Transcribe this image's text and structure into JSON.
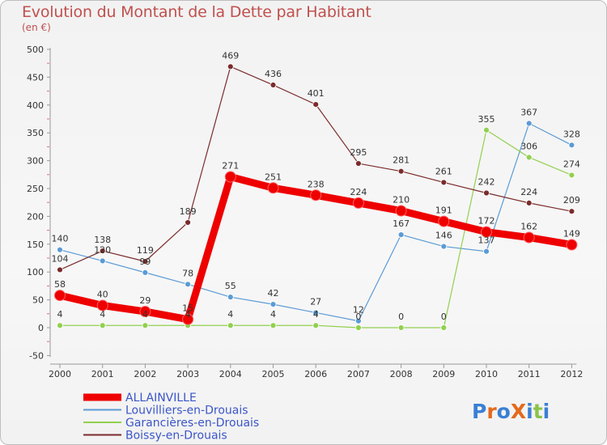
{
  "chart_data": {
    "type": "line",
    "title": "Evolution du Montant de la Dette par Habitant",
    "subtitle": "(en €)",
    "xlabel": "",
    "ylabel": "",
    "categories": [
      "2000",
      "2001",
      "2002",
      "2003",
      "2004",
      "2005",
      "2006",
      "2007",
      "2008",
      "2009",
      "2010",
      "2011",
      "2012"
    ],
    "ylim": [
      -50,
      500
    ],
    "yticks": [
      -50,
      0,
      50,
      100,
      150,
      200,
      250,
      300,
      350,
      400,
      450,
      500
    ],
    "grid": false,
    "legend_position": "bottom-left",
    "series": [
      {
        "name": "ALLAINVILLE",
        "color": "#ee0000",
        "values": [
          58,
          40,
          29,
          15,
          271,
          251,
          238,
          224,
          210,
          191,
          172,
          162,
          149
        ]
      },
      {
        "name": "Louvilliers-en-Drouais",
        "color": "#5b9bd5",
        "values": [
          140,
          120,
          99,
          78,
          55,
          42,
          27,
          12,
          167,
          146,
          137,
          367,
          328
        ]
      },
      {
        "name": "Garancières-en-Drouais",
        "color": "#92d050",
        "values": [
          4,
          4,
          4,
          4,
          4,
          4,
          4,
          0,
          0,
          0,
          355,
          306,
          274
        ]
      },
      {
        "name": "Boissy-en-Drouais",
        "color": "#7b2c2c",
        "values": [
          104,
          138,
          119,
          189,
          469,
          436,
          401,
          295,
          281,
          261,
          242,
          224,
          209
        ]
      }
    ],
    "value_labels": {
      "ALLAINVILLE": [
        "58",
        "40",
        "29",
        "15",
        "271",
        "251",
        "238",
        "224",
        "210",
        "191",
        "172",
        "162",
        "149"
      ],
      "Louvilliers-en-Drouais": [
        "140",
        "120",
        "99",
        "78",
        "55",
        "42",
        "27",
        "12",
        "167",
        "146",
        "137",
        "367",
        "328"
      ],
      "Garancières-en-Drouais": [
        "4",
        "4",
        "4",
        "4",
        "4",
        "4",
        "4",
        "0",
        "0",
        "0",
        "355",
        "306",
        "274"
      ],
      "Boissy-en-Drouais": [
        "104",
        "138",
        "119",
        "189",
        "469",
        "436",
        "401",
        "295",
        "281",
        "261",
        "242",
        "224",
        "209"
      ]
    }
  },
  "logo": {
    "text": "ProXiti",
    "letters": [
      "P",
      "r",
      "o",
      "X",
      "i",
      "t",
      "i"
    ],
    "colors": [
      "#3a7fd5",
      "#e26b1c",
      "#3a7fd5",
      "#e26b1c",
      "#3a7fd5",
      "#8bc34a",
      "#3a7fd5"
    ]
  }
}
